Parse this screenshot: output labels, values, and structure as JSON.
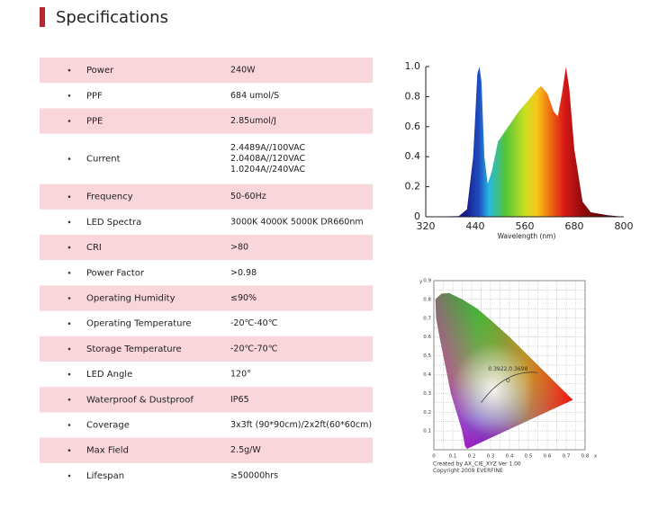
{
  "header": {
    "title": "Specifications"
  },
  "table": {
    "rows": [
      [
        "Power",
        "240W"
      ],
      [
        "PPF",
        "684 umol/S"
      ],
      [
        "PPE",
        "2.85umol/J"
      ],
      [
        "Current",
        [
          "2.4489A//100VAC",
          "2.0408A//120VAC",
          "1.0204A//240VAC"
        ]
      ],
      [
        "Frequency",
        "50-60Hz"
      ],
      [
        "LED Spectra",
        "3000K 4000K 5000K DR660nm"
      ],
      [
        "CRI",
        ">80"
      ],
      [
        "Power Factor",
        ">0.98"
      ],
      [
        "Operating Humidity",
        "≤90%"
      ],
      [
        "Operating Temperature",
        "-20℃-40℃"
      ],
      [
        "Storage Temperature",
        "-20℃-70℃"
      ],
      [
        "LED Angle",
        "120°"
      ],
      [
        "Waterproof & Dustproof",
        "IP65"
      ],
      [
        "Coverage",
        "3x3ft (90*90cm)/2x2ft(60*60cm)"
      ],
      [
        "Max Field",
        "2.5g/W"
      ],
      [
        "Lifespan",
        "≥50000hrs"
      ]
    ]
  },
  "spectrum": {
    "yticks": [
      "1.0",
      "0.8",
      "0.6",
      "0.4",
      "0.2",
      "0"
    ],
    "xticks": [
      "320",
      "440",
      "560",
      "680",
      "800"
    ],
    "xlabel": "Wavelength (nm)"
  },
  "cie": {
    "yticks": [
      "0.9",
      "0.8",
      "0.7",
      "0.6",
      "0.5",
      "0.4",
      "0.3",
      "0.2",
      "0.1"
    ],
    "xticks": [
      "0",
      "0.1",
      "0.2",
      "0.3",
      "0.4",
      "0.5",
      "0.6",
      "0.7",
      "0.8"
    ],
    "xaxis": "x",
    "yaxis": "y",
    "point_label": "0.3922,0.3698",
    "credits": [
      "Created by AX_CIE_XYZ Ver 1.00",
      "Copyright 2009 EVERFINE"
    ]
  }
}
